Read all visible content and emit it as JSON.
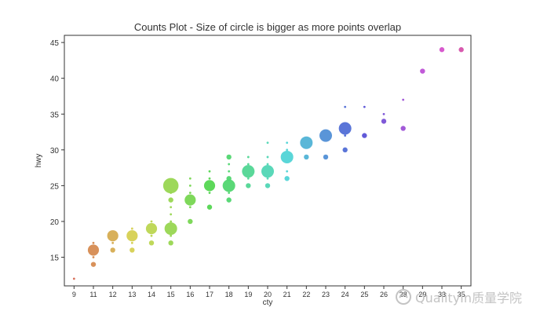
{
  "chart_data": {
    "type": "scatter",
    "title": "Counts Plot - Size of circle is bigger as more points overlap",
    "xlabel": "cty",
    "ylabel": "hwy",
    "x_categories": [
      "9",
      "11",
      "12",
      "13",
      "14",
      "15",
      "16",
      "17",
      "18",
      "19",
      "20",
      "21",
      "22",
      "23",
      "24",
      "25",
      "26",
      "28",
      "29",
      "33",
      "35"
    ],
    "ylim": [
      11,
      46
    ],
    "yticks": [
      15,
      20,
      25,
      30,
      35,
      40,
      45
    ],
    "grid": false,
    "points": [
      {
        "x": "9",
        "y": 12,
        "count": 1
      },
      {
        "x": "11",
        "y": 14,
        "count": 2
      },
      {
        "x": "11",
        "y": 15,
        "count": 1
      },
      {
        "x": "11",
        "y": 16,
        "count": 5
      },
      {
        "x": "11",
        "y": 17,
        "count": 1
      },
      {
        "x": "12",
        "y": 16,
        "count": 2
      },
      {
        "x": "12",
        "y": 17,
        "count": 1
      },
      {
        "x": "12",
        "y": 18,
        "count": 5
      },
      {
        "x": "13",
        "y": 16,
        "count": 2
      },
      {
        "x": "13",
        "y": 17,
        "count": 1
      },
      {
        "x": "13",
        "y": 18,
        "count": 5
      },
      {
        "x": "13",
        "y": 19,
        "count": 1
      },
      {
        "x": "14",
        "y": 17,
        "count": 2
      },
      {
        "x": "14",
        "y": 18,
        "count": 1
      },
      {
        "x": "14",
        "y": 19,
        "count": 5
      },
      {
        "x": "14",
        "y": 20,
        "count": 1
      },
      {
        "x": "15",
        "y": 17,
        "count": 2
      },
      {
        "x": "15",
        "y": 18,
        "count": 1
      },
      {
        "x": "15",
        "y": 19,
        "count": 6
      },
      {
        "x": "15",
        "y": 20,
        "count": 1
      },
      {
        "x": "15",
        "y": 21,
        "count": 1
      },
      {
        "x": "15",
        "y": 22,
        "count": 1
      },
      {
        "x": "15",
        "y": 23,
        "count": 2
      },
      {
        "x": "15",
        "y": 24,
        "count": 1
      },
      {
        "x": "15",
        "y": 25,
        "count": 8
      },
      {
        "x": "16",
        "y": 20,
        "count": 2
      },
      {
        "x": "16",
        "y": 22,
        "count": 1
      },
      {
        "x": "16",
        "y": 23,
        "count": 5
      },
      {
        "x": "16",
        "y": 24,
        "count": 1
      },
      {
        "x": "16",
        "y": 25,
        "count": 1
      },
      {
        "x": "16",
        "y": 26,
        "count": 1
      },
      {
        "x": "17",
        "y": 22,
        "count": 2
      },
      {
        "x": "17",
        "y": 24,
        "count": 1
      },
      {
        "x": "17",
        "y": 25,
        "count": 5
      },
      {
        "x": "17",
        "y": 26,
        "count": 1
      },
      {
        "x": "17",
        "y": 27,
        "count": 1
      },
      {
        "x": "18",
        "y": 23,
        "count": 2
      },
      {
        "x": "18",
        "y": 24,
        "count": 1
      },
      {
        "x": "18",
        "y": 25,
        "count": 6
      },
      {
        "x": "18",
        "y": 26,
        "count": 2
      },
      {
        "x": "18",
        "y": 27,
        "count": 1
      },
      {
        "x": "18",
        "y": 28,
        "count": 1
      },
      {
        "x": "18",
        "y": 29,
        "count": 2
      },
      {
        "x": "19",
        "y": 25,
        "count": 2
      },
      {
        "x": "19",
        "y": 26,
        "count": 1
      },
      {
        "x": "19",
        "y": 27,
        "count": 6
      },
      {
        "x": "19",
        "y": 28,
        "count": 1
      },
      {
        "x": "19",
        "y": 29,
        "count": 1
      },
      {
        "x": "20",
        "y": 25,
        "count": 2
      },
      {
        "x": "20",
        "y": 26,
        "count": 1
      },
      {
        "x": "20",
        "y": 27,
        "count": 6
      },
      {
        "x": "20",
        "y": 28,
        "count": 1
      },
      {
        "x": "20",
        "y": 29,
        "count": 1
      },
      {
        "x": "20",
        "y": 31,
        "count": 1
      },
      {
        "x": "21",
        "y": 26,
        "count": 2
      },
      {
        "x": "21",
        "y": 27,
        "count": 1
      },
      {
        "x": "21",
        "y": 29,
        "count": 6
      },
      {
        "x": "21",
        "y": 30,
        "count": 1
      },
      {
        "x": "21",
        "y": 31,
        "count": 1
      },
      {
        "x": "22",
        "y": 29,
        "count": 2
      },
      {
        "x": "22",
        "y": 31,
        "count": 6
      },
      {
        "x": "23",
        "y": 29,
        "count": 2
      },
      {
        "x": "23",
        "y": 32,
        "count": 6
      },
      {
        "x": "24",
        "y": 30,
        "count": 2
      },
      {
        "x": "24",
        "y": 32,
        "count": 1
      },
      {
        "x": "24",
        "y": 33,
        "count": 6
      },
      {
        "x": "24",
        "y": 36,
        "count": 1
      },
      {
        "x": "25",
        "y": 32,
        "count": 2
      },
      {
        "x": "25",
        "y": 36,
        "count": 1
      },
      {
        "x": "26",
        "y": 34,
        "count": 2
      },
      {
        "x": "26",
        "y": 35,
        "count": 1
      },
      {
        "x": "28",
        "y": 33,
        "count": 2
      },
      {
        "x": "28",
        "y": 37,
        "count": 1
      },
      {
        "x": "29",
        "y": 41,
        "count": 2
      },
      {
        "x": "33",
        "y": 44,
        "count": 2
      },
      {
        "x": "35",
        "y": 44,
        "count": 2
      }
    ]
  },
  "watermark": {
    "icon": "wechat-official-account-icon",
    "text": "QualityIn质量学院"
  }
}
